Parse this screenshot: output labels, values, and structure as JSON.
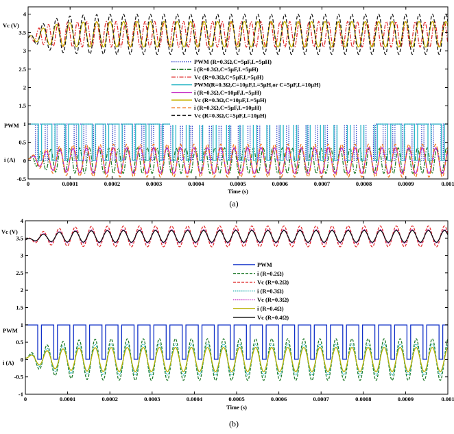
{
  "chart_data": [
    {
      "type": "line",
      "caption": "(a)",
      "xlabel": "Time (s)",
      "xlim": [
        0,
        0.001
      ],
      "x_ticks": [
        "0",
        "0.0001",
        "0.0002",
        "0.0003",
        "0.0004",
        "0.0005",
        "0.0006",
        "0.0007",
        "0.0008",
        "0.0009",
        "0.001"
      ],
      "ylim": [
        -0.5,
        4.2
      ],
      "y_ticks": [
        "-0.5",
        "0",
        "0.5",
        "1",
        "1.5",
        "2",
        "2.5",
        "3",
        "3.5",
        "4"
      ],
      "axis_labels": [
        "Vc (V)",
        "PWM",
        "i (A)"
      ],
      "grid": false,
      "legend_position": "center",
      "series": [
        {
          "name": "PWM (R=0.3Ω,C=5µF,L=5µH)",
          "kind": "pwm",
          "color": "#2f43c8",
          "dash": "1.5,1.5",
          "period_us": 23.0,
          "duty": 0.77
        },
        {
          "name": "i (R=0.3Ω,C=5µF,L=5µH)",
          "kind": "current",
          "color": "#1f7a2a",
          "dash": "6,2,1.5,2",
          "period_us": 23.0,
          "amplitude": 0.35,
          "offset": 0.0
        },
        {
          "name": "Vc (R=0.3Ω,C=5µF,L=5µH)",
          "kind": "voltage",
          "color": "#e03030",
          "dash": "6,2,1.5,2",
          "period_us": 23.0,
          "amplitude": 0.35,
          "mean": 3.45
        },
        {
          "name": "PWM(R=0.3Ω,C=10µF,L=5µH,or C=5µF,L=10µH)",
          "kind": "pwm",
          "color": "#30b8c8",
          "dash": "",
          "period_us": 32.0,
          "duty": 0.77
        },
        {
          "name": "i (R=0.3Ω,C=10µF,L=5µH)",
          "kind": "current",
          "color": "#c020c0",
          "dash": "",
          "period_us": 32.0,
          "amplitude": 0.35,
          "offset": 0.0
        },
        {
          "name": "Vc (R=0.3Ω,C=10µF,L=5µH)",
          "kind": "voltage",
          "color": "#c8b400",
          "dash": "",
          "period_us": 32.0,
          "amplitude": 0.35,
          "mean": 3.45
        },
        {
          "name": "i (R=0.3Ω,C=5µF,L=10µH)",
          "kind": "current",
          "color": "#f07820",
          "dash": "5,3",
          "period_us": 32.0,
          "amplitude": 0.45,
          "offset": 0.0
        },
        {
          "name": "Vc (R=0.3Ω,C=5µF,L=10µH)",
          "kind": "voltage",
          "color": "#202020",
          "dash": "5,3",
          "period_us": 32.0,
          "amplitude": 0.55,
          "mean": 3.45
        }
      ]
    },
    {
      "type": "line",
      "caption": "(b)",
      "xlabel": "Time (s)",
      "xlim": [
        0,
        0.001
      ],
      "x_ticks": [
        "0",
        "0.0001",
        "0.0002",
        "0.0003",
        "0.0004",
        "0.0005",
        "0.0006",
        "0.0007",
        "0.0008",
        "0.0009",
        "0.001"
      ],
      "ylim": [
        -1,
        4
      ],
      "y_ticks": [
        "-1",
        "-0.5",
        "0",
        "0.5",
        "1",
        "1.5",
        "2",
        "2.5",
        "3",
        "3.5",
        "4"
      ],
      "axis_labels": [
        "Vc (V)",
        "PWM",
        "i (A)"
      ],
      "grid": false,
      "legend_position": "center-right",
      "series": [
        {
          "name": "PWM",
          "kind": "pwm",
          "color": "#1030c8",
          "dash": "",
          "period_us": 38.0,
          "duty": 0.77
        },
        {
          "name": "i (R=0.2Ω)",
          "kind": "current",
          "color": "#1f7a2a",
          "dash": "4,2",
          "period_us": 38.0,
          "amplitude": 0.6,
          "offset": 0.0
        },
        {
          "name": "Vc (R=0.2Ω)",
          "kind": "voltage",
          "color": "#e03030",
          "dash": "4,2",
          "period_us": 38.0,
          "amplitude": 0.3,
          "mean": 3.55
        },
        {
          "name": "i (R=0.3Ω)",
          "kind": "current",
          "color": "#20b0b0",
          "dash": "1.5,1.5",
          "period_us": 38.0,
          "amplitude": 0.45,
          "offset": 0.0
        },
        {
          "name": "Vc (R=0.3Ω)",
          "kind": "voltage",
          "color": "#c020c0",
          "dash": "1.5,1.5",
          "period_us": 38.0,
          "amplitude": 0.2,
          "mean": 3.55
        },
        {
          "name": "i (R=0.4Ω)",
          "kind": "current",
          "color": "#b8b000",
          "dash": "",
          "period_us": 38.0,
          "amplitude": 0.35,
          "offset": 0.0
        },
        {
          "name": "Vc (R=0.4Ω)",
          "kind": "voltage",
          "color": "#101010",
          "dash": "",
          "period_us": 38.0,
          "amplitude": 0.17,
          "mean": 3.55
        }
      ]
    }
  ]
}
